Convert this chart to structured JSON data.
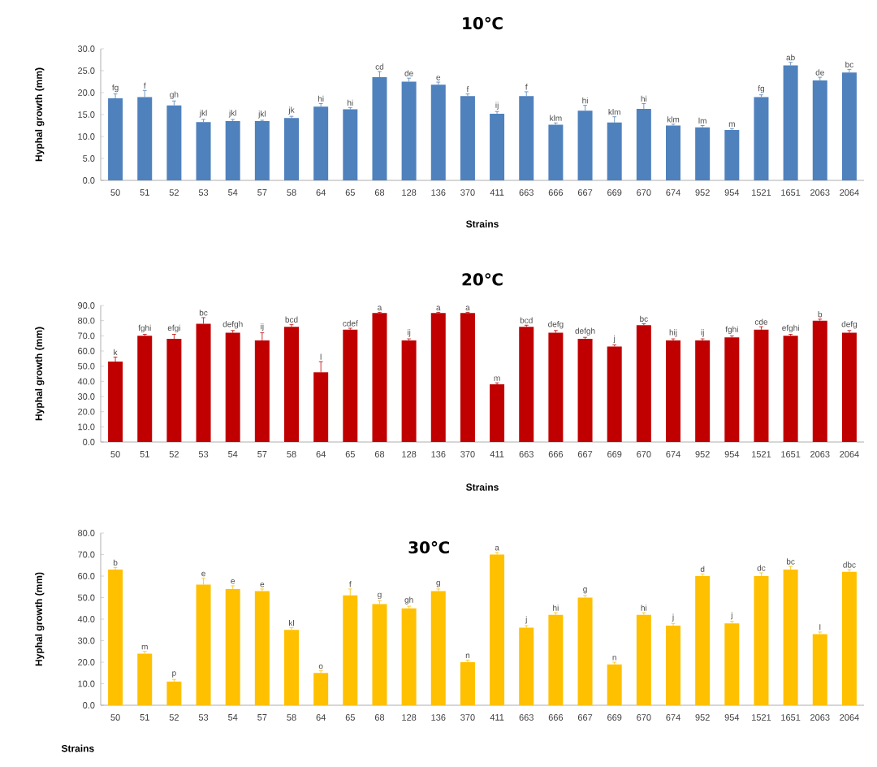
{
  "chart_data": [
    {
      "type": "bar",
      "title": "10℃",
      "xlabel": "Strains",
      "ylabel": "Hyphal growth (mm)",
      "color": "#4f81bd",
      "categories": [
        "50",
        "51",
        "52",
        "53",
        "54",
        "57",
        "58",
        "64",
        "65",
        "68",
        "128",
        "136",
        "370",
        "411",
        "663",
        "666",
        "667",
        "669",
        "670",
        "674",
        "952",
        "954",
        "1521",
        "1651",
        "2063",
        "2064"
      ],
      "values": [
        18.7,
        19.0,
        17.1,
        13.3,
        13.5,
        13.5,
        14.2,
        16.8,
        16.2,
        23.5,
        22.5,
        21.8,
        19.2,
        15.2,
        19.2,
        12.7,
        15.9,
        13.2,
        16.3,
        12.5,
        12.1,
        11.5,
        19.0,
        26.2,
        22.8,
        24.6
      ],
      "errors": [
        1.0,
        1.5,
        1.0,
        0.6,
        0.4,
        0.2,
        0.4,
        0.7,
        0.4,
        1.3,
        0.8,
        0.6,
        0.5,
        0.5,
        1.0,
        0.4,
        1.2,
        1.3,
        1.2,
        0.3,
        0.4,
        0.3,
        0.5,
        0.7,
        0.7,
        0.7
      ],
      "value_labels": [
        "fg",
        "f",
        "gh",
        "jkl",
        "jkl",
        "jkl",
        "jk",
        "hi",
        "hi",
        "cd",
        "de",
        "e",
        "f",
        "ij",
        "f",
        "klm",
        "hi",
        "klm",
        "hi",
        "klm",
        "lm",
        "m",
        "fg",
        "ab",
        "de",
        "bc"
      ],
      "ylim": [
        0,
        30
      ],
      "yticks": [
        {
          "value": 0,
          "label": "0.0"
        },
        {
          "value": 5,
          "label": "5.0"
        },
        {
          "value": 10,
          "label": "10.0"
        },
        {
          "value": 15,
          "label": "15.0"
        },
        {
          "value": 20,
          "label": "20.0"
        },
        {
          "value": 25,
          "label": "25.0"
        },
        {
          "value": 30,
          "label": "30.0"
        }
      ]
    },
    {
      "type": "bar",
      "title": "20℃",
      "xlabel": "Strains",
      "ylabel": "Hyphal growth (mm)",
      "color": "#c00000",
      "categories": [
        "50",
        "51",
        "52",
        "53",
        "54",
        "57",
        "58",
        "64",
        "65",
        "68",
        "128",
        "136",
        "370",
        "411",
        "663",
        "666",
        "667",
        "669",
        "670",
        "674",
        "952",
        "954",
        "1521",
        "1651",
        "2063",
        "2064"
      ],
      "values": [
        53,
        70,
        68,
        78,
        72,
        67,
        76,
        46,
        74,
        85,
        67,
        85,
        85,
        38,
        76,
        72,
        68,
        63,
        77,
        67,
        67,
        69,
        74,
        70,
        80,
        72
      ],
      "errors": [
        3,
        1,
        3,
        4,
        1.5,
        5,
        1.5,
        7,
        1,
        0.5,
        1,
        0.5,
        0.5,
        1,
        1,
        1.5,
        1,
        1,
        1,
        1,
        1,
        1,
        2,
        1,
        1,
        1.5
      ],
      "value_labels": [
        "k",
        "fghi",
        "efgi",
        "bc",
        "defgh",
        "ij",
        "bcd",
        "l",
        "cdef",
        "a",
        "ij",
        "a",
        "a",
        "m",
        "bcd",
        "defg",
        "defgh",
        "j",
        "bc",
        "hij",
        "ij",
        "fghi",
        "cde",
        "efghi",
        "b",
        "defg"
      ],
      "ylim": [
        0,
        90
      ],
      "yticks": [
        {
          "value": 0,
          "label": "0.0"
        },
        {
          "value": 10,
          "label": "10.0"
        },
        {
          "value": 20,
          "label": "20.0"
        },
        {
          "value": 30,
          "label": "30.0"
        },
        {
          "value": 40,
          "label": "40.0"
        },
        {
          "value": 50,
          "label": "50.0"
        },
        {
          "value": 60,
          "label": "60.0"
        },
        {
          "value": 70,
          "label": "70.0"
        },
        {
          "value": 80,
          "label": "80.0"
        },
        {
          "value": 90,
          "label": "90.0"
        }
      ]
    },
    {
      "type": "bar",
      "title": "30℃",
      "xlabel": "Strains",
      "ylabel": "Hyphal growth (mm)",
      "color": "#ffc000",
      "categories": [
        "50",
        "51",
        "52",
        "53",
        "54",
        "57",
        "58",
        "64",
        "65",
        "68",
        "128",
        "136",
        "370",
        "411",
        "663",
        "666",
        "667",
        "669",
        "670",
        "674",
        "952",
        "954",
        "1521",
        "1651",
        "2063",
        "2064"
      ],
      "values": [
        63,
        24,
        11,
        56,
        54,
        53,
        35,
        15,
        51,
        47,
        45,
        53,
        20,
        70,
        36,
        42,
        50,
        19,
        42,
        37,
        60,
        38,
        60,
        63,
        33,
        62
      ],
      "errors": [
        1,
        1,
        1,
        3,
        1.5,
        1,
        1,
        1,
        3,
        1.5,
        1,
        1,
        1,
        1,
        1,
        1,
        1,
        1,
        1,
        1,
        1,
        1,
        1.5,
        1.5,
        1,
        1
      ],
      "value_labels": [
        "b",
        "m",
        "p",
        "e",
        "e",
        "e",
        "kl",
        "o",
        "f",
        "g",
        "gh",
        "g",
        "n",
        "a",
        "j",
        "hi",
        "g",
        "n",
        "hi",
        "j",
        "d",
        "j",
        "dc",
        "bc",
        "l",
        "dbc"
      ],
      "ylim": [
        0,
        80
      ],
      "yticks": [
        {
          "value": 0,
          "label": "0.0"
        },
        {
          "value": 10,
          "label": "10.0"
        },
        {
          "value": 20,
          "label": "20.0"
        },
        {
          "value": 30,
          "label": "30.0"
        },
        {
          "value": 40,
          "label": "40.0"
        },
        {
          "value": 50,
          "label": "50.0"
        },
        {
          "value": 60,
          "label": "60.0"
        },
        {
          "value": 70,
          "label": "70.0"
        },
        {
          "value": 80,
          "label": "80.0"
        }
      ]
    }
  ]
}
